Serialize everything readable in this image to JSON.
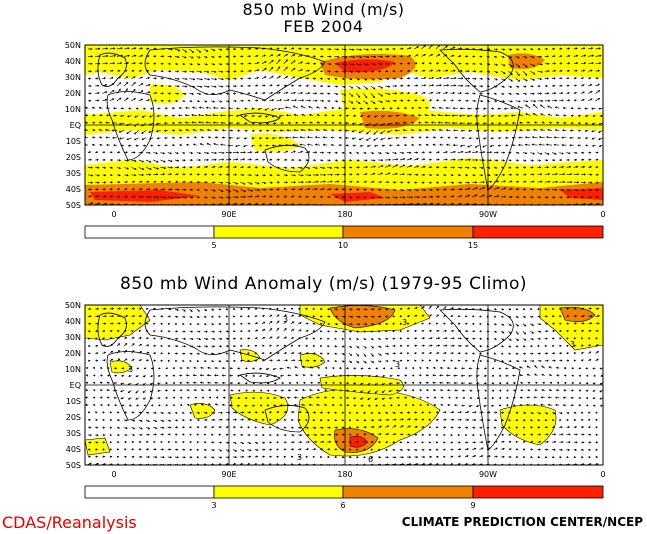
{
  "panel1": {
    "title_line1": "850 mb Wind (m/s)",
    "title_line2": "FEB 2004",
    "lat_labels": [
      "50N",
      "40N",
      "30N",
      "20N",
      "10N",
      "EQ",
      "10S",
      "20S",
      "30S",
      "40S",
      "50S"
    ],
    "lon_labels": [
      "0",
      "90E",
      "180",
      "90W",
      "0"
    ],
    "colorbar": {
      "tick_labels": [
        "5",
        "10",
        "15"
      ],
      "colors": [
        "#ffffff",
        "#ffff00",
        "#ff8c00",
        "#ff2000"
      ]
    }
  },
  "panel2": {
    "title": "850 mb Wind Anomaly (m/s) (1979-95 Climo)",
    "lat_labels": [
      "50N",
      "40N",
      "30N",
      "20N",
      "10N",
      "EQ",
      "10S",
      "20S",
      "30S",
      "40S",
      "50S"
    ],
    "lon_labels": [
      "0",
      "90E",
      "180",
      "90W",
      "0"
    ],
    "colorbar": {
      "tick_labels": [
        "3",
        "6",
        "9"
      ],
      "colors": [
        "#ffffff",
        "#ffff00",
        "#ff8c00",
        "#ff2000"
      ]
    },
    "contour_labels": [
      "3",
      "3",
      "3",
      "3",
      "3",
      "3",
      "6"
    ]
  },
  "footer": {
    "left": "CDAS/Reanalysis",
    "right": "CLIMATE PREDICTION CENTER/NCEP"
  },
  "colors": {
    "yellow": "#ffff00",
    "orange": "#f08000",
    "red": "#ff2000",
    "land_outline": "#000000"
  }
}
